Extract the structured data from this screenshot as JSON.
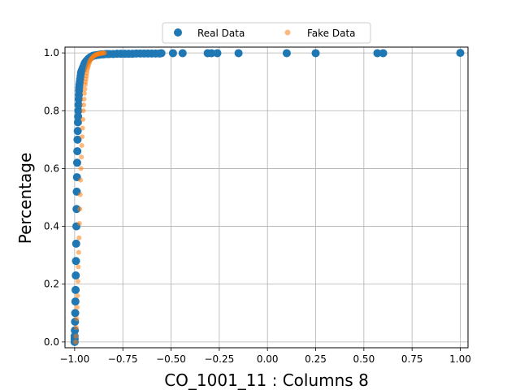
{
  "chart_data": {
    "type": "scatter",
    "xlabel": "CO_1001_11 : Columns 8",
    "ylabel": "Percentage",
    "xlim": [
      -1.05,
      1.04
    ],
    "ylim": [
      -0.02,
      1.02
    ],
    "xticks": [
      -1.0,
      -0.75,
      -0.5,
      -0.25,
      0.0,
      0.25,
      0.5,
      0.75,
      1.0
    ],
    "xtick_labels": [
      "−1.00",
      "−0.75",
      "−0.50",
      "−0.25",
      "0.00",
      "0.25",
      "0.50",
      "0.75",
      "1.00"
    ],
    "yticks": [
      0.0,
      0.2,
      0.4,
      0.6,
      0.8,
      1.0
    ],
    "ytick_labels": [
      "0.0",
      "0.2",
      "0.4",
      "0.6",
      "0.8",
      "1.0"
    ],
    "grid": true,
    "legend": {
      "placement": "top-center",
      "entries": [
        {
          "label": "Real Data",
          "color": "#1f77b4"
        },
        {
          "label": "Fake Data",
          "color": "#ff7f0e"
        }
      ]
    },
    "series": [
      {
        "name": "Real Data",
        "color": "#1f77b4",
        "marker_size": 10,
        "opacity": 1.0,
        "x": [
          -1.0,
          -1.0,
          -1.0,
          -0.999,
          -0.998,
          -0.997,
          -0.996,
          -0.995,
          -0.994,
          -0.993,
          -0.992,
          -0.991,
          -0.99,
          -0.989,
          -0.988,
          -0.987,
          -0.986,
          -0.985,
          -0.984,
          -0.983,
          -0.982,
          -0.981,
          -0.98,
          -0.979,
          -0.978,
          -0.977,
          -0.976,
          -0.975,
          -0.973,
          -0.971,
          -0.969,
          -0.967,
          -0.965,
          -0.962,
          -0.959,
          -0.956,
          -0.953,
          -0.95,
          -0.947,
          -0.944,
          -0.94,
          -0.936,
          -0.932,
          -0.928,
          -0.924,
          -0.92,
          -0.915,
          -0.91,
          -0.905,
          -0.9,
          -0.89,
          -0.88,
          -0.87,
          -0.86,
          -0.85,
          -0.84,
          -0.83,
          -0.82,
          -0.8,
          -0.78,
          -0.76,
          -0.74,
          -0.72,
          -0.7,
          -0.68,
          -0.66,
          -0.64,
          -0.62,
          -0.6,
          -0.58,
          -0.56,
          -0.55,
          -0.49,
          -0.44,
          -0.31,
          -0.29,
          -0.26,
          -0.15,
          0.1,
          0.25,
          0.57,
          0.6,
          1.0
        ],
        "y": [
          0.0,
          0.01,
          0.02,
          0.04,
          0.07,
          0.1,
          0.14,
          0.18,
          0.23,
          0.28,
          0.34,
          0.4,
          0.46,
          0.52,
          0.57,
          0.62,
          0.66,
          0.7,
          0.73,
          0.76,
          0.78,
          0.8,
          0.82,
          0.84,
          0.855,
          0.87,
          0.88,
          0.89,
          0.9,
          0.91,
          0.92,
          0.93,
          0.935,
          0.94,
          0.945,
          0.95,
          0.955,
          0.96,
          0.965,
          0.968,
          0.971,
          0.974,
          0.977,
          0.98,
          0.982,
          0.984,
          0.986,
          0.988,
          0.99,
          0.991,
          0.992,
          0.993,
          0.994,
          0.995,
          0.995,
          0.996,
          0.996,
          0.996,
          0.996,
          0.997,
          0.997,
          0.997,
          0.997,
          0.997,
          0.998,
          0.998,
          0.998,
          0.998,
          0.998,
          0.998,
          0.998,
          0.999,
          0.999,
          0.999,
          0.999,
          0.999,
          0.999,
          0.999,
          0.999,
          0.999,
          0.999,
          0.999,
          1.0
        ]
      },
      {
        "name": "Fake Data",
        "color": "#ff7f0e",
        "marker_size": 6,
        "opacity": 0.55,
        "x": [
          -0.995,
          -0.993,
          -0.991,
          -0.989,
          -0.987,
          -0.985,
          -0.983,
          -0.981,
          -0.979,
          -0.977,
          -0.975,
          -0.973,
          -0.971,
          -0.969,
          -0.967,
          -0.965,
          -0.963,
          -0.961,
          -0.959,
          -0.957,
          -0.955,
          -0.953,
          -0.951,
          -0.949,
          -0.947,
          -0.945,
          -0.943,
          -0.941,
          -0.939,
          -0.937,
          -0.935,
          -0.932,
          -0.929,
          -0.926,
          -0.923,
          -0.92,
          -0.916,
          -0.912,
          -0.908,
          -0.904,
          -0.9,
          -0.896,
          -0.892,
          -0.888,
          -0.884,
          -0.88,
          -0.876,
          -0.872,
          -0.868,
          -0.864,
          -0.86,
          -0.855,
          -0.85,
          -0.845
        ],
        "y": [
          0.0,
          0.02,
          0.05,
          0.08,
          0.12,
          0.16,
          0.21,
          0.26,
          0.31,
          0.36,
          0.41,
          0.46,
          0.51,
          0.56,
          0.6,
          0.64,
          0.68,
          0.71,
          0.74,
          0.77,
          0.8,
          0.82,
          0.84,
          0.86,
          0.875,
          0.89,
          0.9,
          0.91,
          0.92,
          0.93,
          0.94,
          0.948,
          0.955,
          0.962,
          0.968,
          0.973,
          0.977,
          0.981,
          0.984,
          0.987,
          0.989,
          0.991,
          0.993,
          0.994,
          0.995,
          0.996,
          0.997,
          0.997,
          0.998,
          0.998,
          0.999,
          0.999,
          1.0,
          1.0
        ]
      }
    ]
  }
}
